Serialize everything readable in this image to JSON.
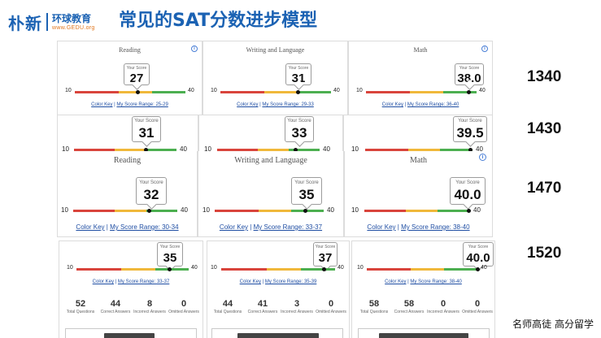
{
  "header": {
    "brand_cn": "朴新",
    "brand_sub": "环球教育",
    "brand_url": "www.GEDU.org",
    "title": "常见的SAT分数进步模型"
  },
  "labels": {
    "your_score": "Your Score",
    "min": "10",
    "max": "40",
    "color_key": "Color Key",
    "range_prefix": "My Score Range: ",
    "reading": "Reading",
    "writing": "Writing and Language",
    "math": "Math"
  },
  "rows": [
    {
      "total": "1340",
      "cards": [
        {
          "section": "Reading",
          "score": "27",
          "range": "25-29",
          "fraction": 0.567
        },
        {
          "section": "Writing and Language",
          "score": "31",
          "range": "29-33",
          "fraction": 0.7
        },
        {
          "section": "Math",
          "score": "38.0",
          "range": "36-40",
          "fraction": 0.93
        }
      ]
    },
    {
      "total": "1430",
      "cards": [
        {
          "score": "31",
          "fraction": 0.7
        },
        {
          "score": "33",
          "fraction": 0.767
        },
        {
          "score": "39.5",
          "fraction": 0.983
        }
      ]
    },
    {
      "total": "1470",
      "cards": [
        {
          "section": "Reading",
          "score": "32",
          "range": "30-34",
          "fraction": 0.733
        },
        {
          "section": "Writing and Language",
          "score": "35",
          "range": "33-37",
          "fraction": 0.833
        },
        {
          "section": "Math",
          "score": "40.0",
          "range": "38-40",
          "fraction": 1.0
        }
      ]
    },
    {
      "total": "1520",
      "cards": [
        {
          "score": "35",
          "range": "33-37",
          "fraction": 0.833,
          "stats": [
            {
              "num": "52",
              "lbl": "Total Questions"
            },
            {
              "num": "44",
              "lbl": "Correct Answers"
            },
            {
              "num": "8",
              "lbl": "Incorrect Answers"
            },
            {
              "num": "0",
              "lbl": "Omitted Answers"
            }
          ]
        },
        {
          "score": "37",
          "range": "35-39",
          "fraction": 0.9,
          "stats": [
            {
              "num": "44",
              "lbl": "Total Questions"
            },
            {
              "num": "41",
              "lbl": "Correct Answers"
            },
            {
              "num": "3",
              "lbl": "Incorrect Answers"
            },
            {
              "num": "0",
              "lbl": "Omitted Answers"
            }
          ]
        },
        {
          "score": "40.0",
          "range": "38-40",
          "fraction": 1.0,
          "stats": [
            {
              "num": "58",
              "lbl": "Total Questions"
            },
            {
              "num": "58",
              "lbl": "Correct Answers"
            },
            {
              "num": "0",
              "lbl": "Incorrect Answers"
            },
            {
              "num": "0",
              "lbl": "Omitted Answers"
            }
          ]
        }
      ]
    }
  ],
  "footer": "名师高徒 高分留学",
  "colors": {
    "brand_blue": "#1b62b3",
    "bar_red": "#d9443c",
    "bar_yellow": "#f0b83a",
    "bar_green": "#4caf50",
    "link": "#1f4ea3"
  },
  "icons": {
    "info": "info-circle-icon",
    "marker": "score-marker-icon"
  }
}
